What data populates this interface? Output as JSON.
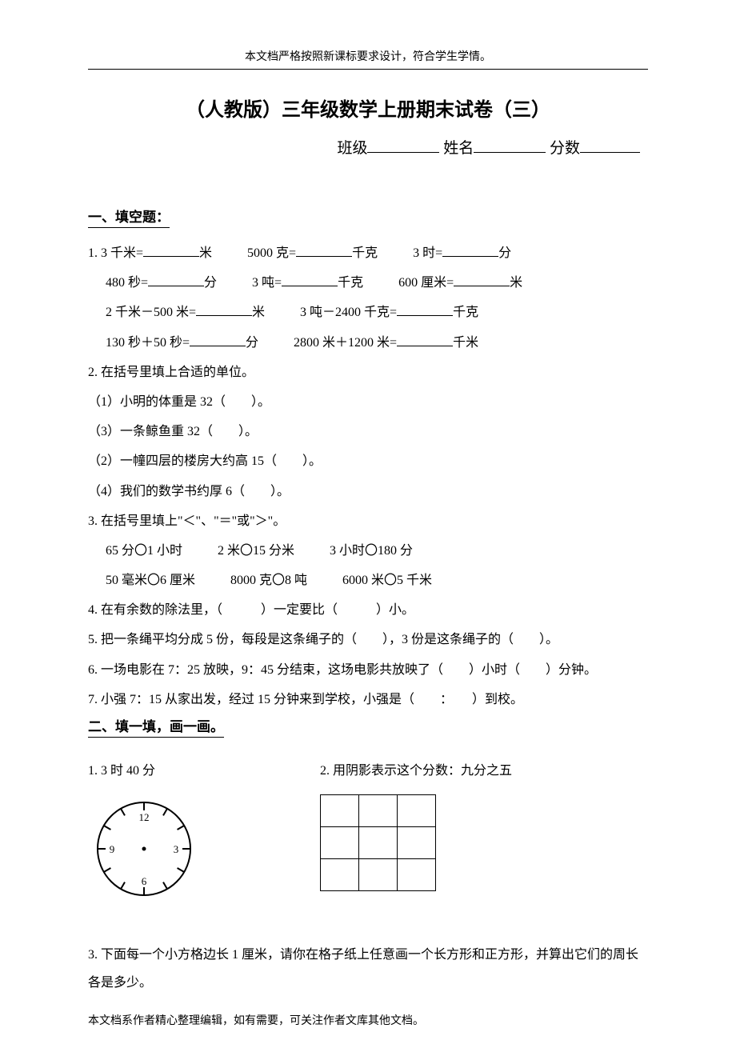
{
  "header": "本文档严格按照新课标要求设计，符合学生学情。",
  "title": "（人教版）三年级数学上册期末试卷（三）",
  "info": {
    "class": "班级",
    "name": "姓名",
    "score": "分数"
  },
  "sec1": {
    "head": "一、填空题：",
    "q1": {
      "a": "1. 3 千米=",
      "a2": "米",
      "b": "5000 克=",
      "b2": "千克",
      "c": "3 时=",
      "c2": "分",
      "d": "480 秒=",
      "d2": "分",
      "e": "3 吨=",
      "e2": "千克",
      "f": "600 厘米=",
      "f2": "米",
      "g": "2 千米－500 米=",
      "g2": "米",
      "h": "3 吨－2400 千克=",
      "h2": "千克",
      "i": "130 秒＋50 秒=",
      "i2": "分",
      "j": "2800 米＋1200 米=",
      "j2": "千米"
    },
    "q2": {
      "lead": "2. 在括号里填上合适的单位。",
      "a": "（1）小明的体重是 32（　　）。",
      "b": "（3）一条鲸鱼重 32（　　）。",
      "c": "（2）一幢四层的楼房大约高 15（　　）。",
      "d": "（4）我们的数学书约厚 6（　　）。"
    },
    "q3": {
      "lead": "3. 在括号里填上\"＜\"、\"＝\"或\"＞\"。",
      "row1a": "65 分〇1 小时",
      "row1b": "2 米〇15 分米",
      "row1c": "3 小时〇180 分",
      "row2a": "50 毫米〇6 厘米",
      "row2b": "8000 克〇8 吨",
      "row2c": "6000 米〇5 千米"
    },
    "q4": "4. 在有余数的除法里，（　　　）一定要比（　　　）小。",
    "q5": "5. 把一条绳平均分成 5 份，每段是这条绳子的（　　），3 份是这条绳子的（　　）。",
    "q6": "6. 一场电影在 7：25 放映，9：45 分结束，这场电影共放映了（　　）小时（　　）分钟。",
    "q7": "7. 小强 7：15 从家出发，经过 15 分钟来到学校，小强是（　　：　　）到校。"
  },
  "sec2": {
    "head": "二、填一填，画一画。",
    "q1": "1. 3 时 40 分",
    "q2": "2. 用阴影表示这个分数：九分之五",
    "q3": "3. 下面每一个小方格边长 1 厘米，请你在格子纸上任意画一个长方形和正方形，并算出它们的周长各是多少。"
  },
  "footer": "本文档系作者精心整理编辑，如有需要，可关注作者文库其他文档。",
  "clock": {
    "radius": 58,
    "tick_len": 10,
    "stroke": "#000000",
    "stroke_width": 2,
    "numbers": [
      "12",
      "3",
      "6",
      "9"
    ],
    "num_offset": 40,
    "font_size": 13
  },
  "grid": {
    "rows": 3,
    "cols": 3
  }
}
